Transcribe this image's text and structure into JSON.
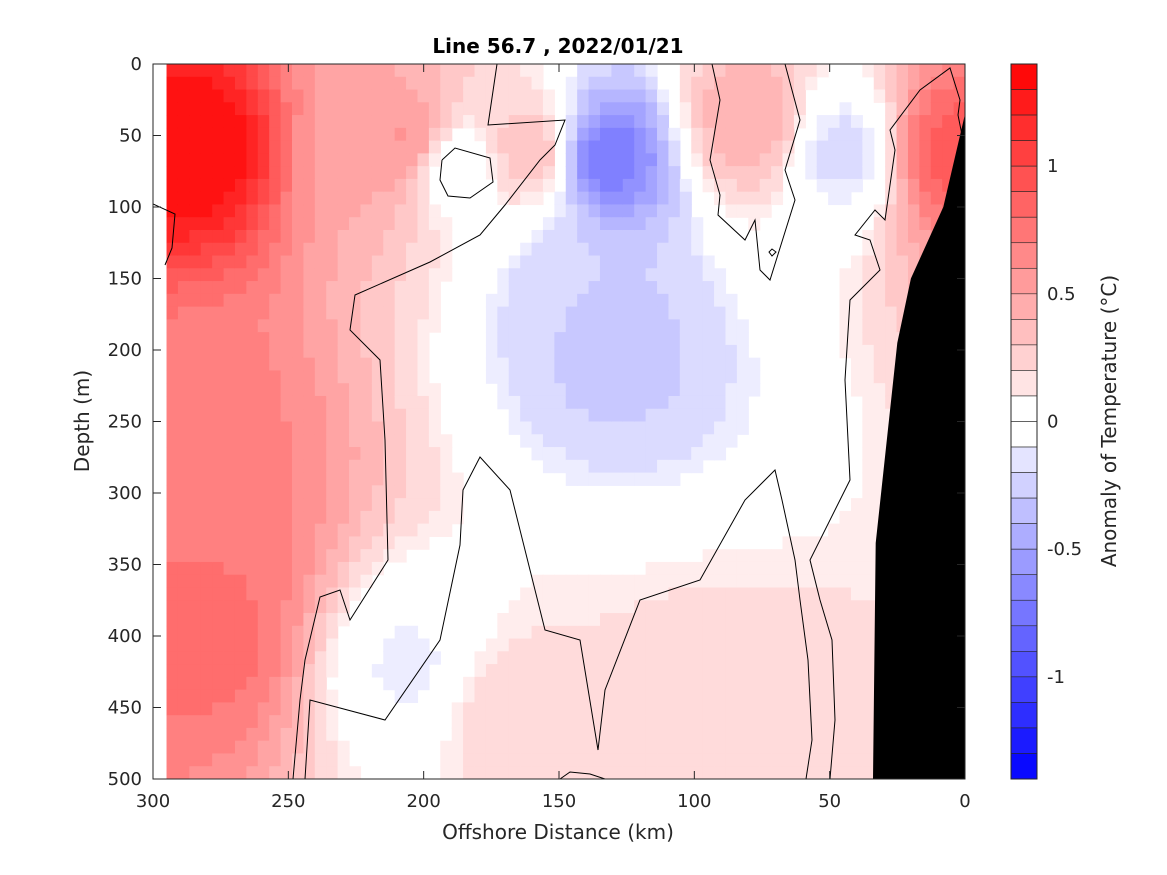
{
  "chart_data": {
    "type": "heatmap",
    "subtype": "filled-contour depth section",
    "title": "Line 56.7 , 2022/01/21",
    "xlabel": "Offshore Distance (km)",
    "ylabel": "Depth (m)",
    "colorbar_label": "Anomaly of Temperature (°C)",
    "xlim": [
      300,
      0
    ],
    "ylim": [
      0,
      500
    ],
    "x_reversed": true,
    "y_reversed": true,
    "x_ticks": [
      300,
      250,
      200,
      150,
      100,
      50,
      0
    ],
    "y_ticks": [
      0,
      50,
      100,
      150,
      200,
      250,
      300,
      350,
      400,
      450,
      500
    ],
    "colorbar_range": [
      -1.4,
      1.4
    ],
    "colorbar_ticks": [
      1,
      0.5,
      0,
      -0.5,
      -1
    ],
    "colorbar_tick_labels": [
      "1",
      "0.5",
      "0",
      "-0.5",
      "-1"
    ],
    "colorbar_levels": 28,
    "colormap": {
      "negative": "#0000ff",
      "zero": "#ffffff",
      "positive": "#ff0000"
    },
    "zero_contour_color": "#000000",
    "bathymetry_color": "#000000",
    "bathymetry_boundary": [
      [
        0,
        35
      ],
      [
        8,
        100
      ],
      [
        20,
        150
      ],
      [
        25,
        195
      ],
      [
        33,
        335
      ],
      [
        34,
        500
      ]
    ],
    "data_left_edge_km": 295,
    "anomaly_features": [
      {
        "x": 283,
        "y": 60,
        "value": 1.35
      },
      {
        "x": 280,
        "y": 400,
        "value": 0.8
      },
      {
        "x": 280,
        "y": 330,
        "value": 0.75
      },
      {
        "x": 283,
        "y": 250,
        "value": 0.7
      },
      {
        "x": 220,
        "y": 60,
        "value": 0.5
      },
      {
        "x": 205,
        "y": 55,
        "value": 0.6
      },
      {
        "x": 160,
        "y": 60,
        "value": 0.35
      },
      {
        "x": 80,
        "y": 40,
        "value": 0.45
      },
      {
        "x": 5,
        "y": 60,
        "value": 0.9
      },
      {
        "x": 133,
        "y": 65,
        "value": -0.75
      },
      {
        "x": 130,
        "y": 200,
        "value": -0.3
      },
      {
        "x": 145,
        "y": 160,
        "value": -0.25
      },
      {
        "x": 45,
        "y": 60,
        "value": -0.2
      },
      {
        "x": 205,
        "y": 420,
        "value": -0.12
      },
      {
        "x": 170,
        "y": 450,
        "value": 0.2
      },
      {
        "x": 95,
        "y": 450,
        "value": 0.2
      },
      {
        "x": 190,
        "y": 70,
        "value": -0.1
      }
    ]
  }
}
